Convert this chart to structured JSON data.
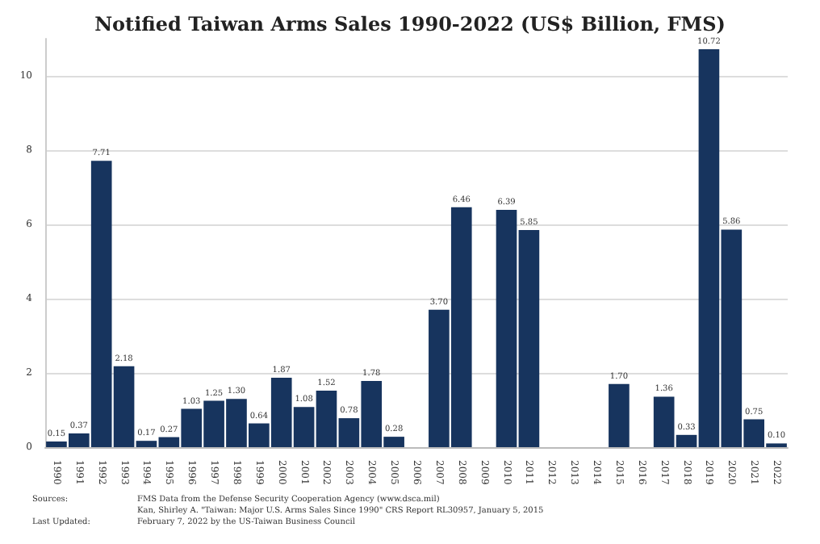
{
  "chart_data": {
    "type": "bar",
    "title": "Notified Taiwan Arms Sales 1990-2022 (US$ Billion, FMS)",
    "categories": [
      "1990",
      "1991",
      "1992",
      "1993",
      "1994",
      "1995",
      "1996",
      "1997",
      "1998",
      "1999",
      "2000",
      "2001",
      "2002",
      "2003",
      "2004",
      "2005",
      "2006",
      "2007",
      "2008",
      "2009",
      "2010",
      "2011",
      "2012",
      "2013",
      "2014",
      "2015",
      "2016",
      "2017",
      "2018",
      "2019",
      "2020",
      "2021",
      "2022"
    ],
    "values": [
      0.15,
      0.37,
      7.71,
      2.18,
      0.17,
      0.27,
      1.03,
      1.25,
      1.3,
      0.64,
      1.87,
      1.08,
      1.52,
      0.78,
      1.78,
      0.28,
      null,
      3.7,
      6.46,
      null,
      6.39,
      5.85,
      null,
      null,
      null,
      1.7,
      null,
      1.36,
      0.33,
      10.72,
      5.86,
      0.75,
      0.1
    ],
    "value_labels": [
      "0.15",
      "0.37",
      "7.71",
      "2.18",
      "0.17",
      "0.27",
      "1.03",
      "1.25",
      "1.30",
      "0.64",
      "1.87",
      "1.08",
      "1.52",
      "0.78",
      "1.78",
      "0.28",
      null,
      "3.70",
      "6.46",
      null,
      "6.39",
      "5.85",
      null,
      null,
      null,
      "1.70",
      null,
      "1.36",
      "0.33",
      "10.72",
      "5.86",
      "0.75",
      "0.10"
    ],
    "color": "#17345e",
    "ylim": [
      0,
      11
    ],
    "yticks": [
      0,
      2,
      4,
      6,
      8,
      10
    ],
    "grid": "y",
    "annotations": [
      "Sources:",
      "FMS Data from the Defense Security Cooperation Agency (www.dsca.mil)",
      "Kan, Shirley A. \"Taiwan: Major U.S. Arms Sales Since 1990\" CRS Report RL30957, January 5, 2015",
      "Last Updated:",
      "February 7, 2022 by the US-Taiwan Business Council"
    ]
  }
}
